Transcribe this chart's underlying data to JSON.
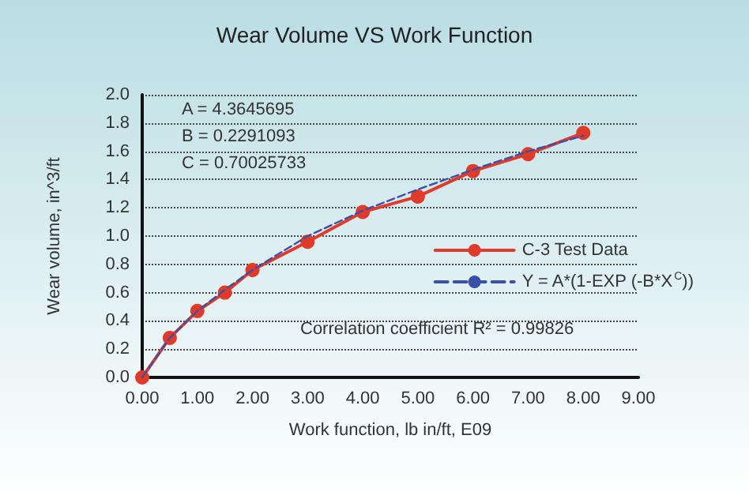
{
  "chart_data": {
    "type": "line",
    "title": "Wear Volume VS Work Function",
    "xlabel": "Work function, lb in/ft, E09",
    "ylabel": "Wear volume, in^3/ft",
    "x": [
      0,
      0.5,
      1,
      1.5,
      2,
      3,
      4,
      5,
      6,
      7,
      8
    ],
    "series": [
      {
        "name": "C-3 Test Data",
        "color": "#e03a2a",
        "values": [
          0,
          0.28,
          0.47,
          0.6,
          0.76,
          0.96,
          1.17,
          1.28,
          1.46,
          1.58,
          1.73
        ],
        "marker": "circle",
        "line_style": "solid"
      },
      {
        "name": "Y = A*(1-EXP (-B*X$^{C}$))",
        "color": "#3a4fa8",
        "values": [
          0,
          0.28,
          0.47,
          0.62,
          0.76,
          1.0,
          1.18,
          1.33,
          1.47,
          1.6,
          1.71
        ],
        "marker": "none",
        "line_style": "dashed"
      }
    ],
    "xlim": [
      0,
      9
    ],
    "ylim": [
      0,
      2
    ],
    "xticks": [
      {
        "value": 0,
        "label": "0.00"
      },
      {
        "value": 1,
        "label": "1.00"
      },
      {
        "value": 2,
        "label": "2.00"
      },
      {
        "value": 3,
        "label": "3.00"
      },
      {
        "value": 4,
        "label": "4.00"
      },
      {
        "value": 5,
        "label": "5.00"
      },
      {
        "value": 6,
        "label": "6.00"
      },
      {
        "value": 7,
        "label": "7.00"
      },
      {
        "value": 8,
        "label": "8.00"
      },
      {
        "value": 9,
        "label": "9.00"
      }
    ],
    "yticks": [
      {
        "value": 0,
        "label": "0.0"
      },
      0.2,
      0.4,
      0.6,
      0.8,
      {
        "value": 1,
        "label": "1.0"
      },
      1.2,
      1.4,
      1.6,
      1.8,
      {
        "value": 2,
        "label": "2.0"
      }
    ],
    "grid": "y",
    "legend": "right",
    "annotations": [
      "A = 4.3645695",
      "B = 0.2291093",
      "C = 0.70025733",
      "Correlation coefficient R² = 0.99826"
    ]
  }
}
